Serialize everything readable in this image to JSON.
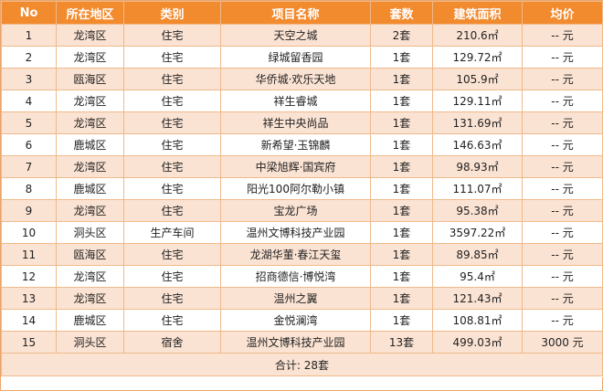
{
  "headers": [
    "No",
    "所在地区",
    "类别",
    "项目名称",
    "套数",
    "建筑面积",
    "均价"
  ],
  "rows": [
    {
      "no": "1",
      "district": "龙湾区",
      "type": "住宅",
      "name": "天空之城",
      "count": "2套",
      "area": "210.6㎡",
      "price": "-- 元"
    },
    {
      "no": "2",
      "district": "龙湾区",
      "type": "住宅",
      "name": "绿城留香园",
      "count": "1套",
      "area": "129.72㎡",
      "price": "-- 元"
    },
    {
      "no": "3",
      "district": "瓯海区",
      "type": "住宅",
      "name": "华侨城·欢乐天地",
      "count": "1套",
      "area": "105.9㎡",
      "price": "-- 元"
    },
    {
      "no": "4",
      "district": "龙湾区",
      "type": "住宅",
      "name": "祥生睿城",
      "count": "1套",
      "area": "129.11㎡",
      "price": "-- 元"
    },
    {
      "no": "5",
      "district": "龙湾区",
      "type": "住宅",
      "name": "祥生中央尚品",
      "count": "1套",
      "area": "131.69㎡",
      "price": "-- 元"
    },
    {
      "no": "6",
      "district": "鹿城区",
      "type": "住宅",
      "name": "新希望·玉锦麟",
      "count": "1套",
      "area": "146.63㎡",
      "price": "-- 元"
    },
    {
      "no": "7",
      "district": "龙湾区",
      "type": "住宅",
      "name": "中梁旭辉·国宾府",
      "count": "1套",
      "area": "98.93㎡",
      "price": "-- 元"
    },
    {
      "no": "8",
      "district": "鹿城区",
      "type": "住宅",
      "name": "阳光100阿尔勒小镇",
      "count": "1套",
      "area": "111.07㎡",
      "price": "-- 元"
    },
    {
      "no": "9",
      "district": "龙湾区",
      "type": "住宅",
      "name": "宝龙广场",
      "count": "1套",
      "area": "95.38㎡",
      "price": "-- 元"
    },
    {
      "no": "10",
      "district": "洞头区",
      "type": "生产车间",
      "name": "温州文博科技产业园",
      "count": "1套",
      "area": "3597.22㎡",
      "price": "-- 元"
    },
    {
      "no": "11",
      "district": "瓯海区",
      "type": "住宅",
      "name": "龙湖华董·春江天玺",
      "count": "1套",
      "area": "89.85㎡",
      "price": "-- 元"
    },
    {
      "no": "12",
      "district": "龙湾区",
      "type": "住宅",
      "name": "招商德信·博悦湾",
      "count": "1套",
      "area": "95.4㎡",
      "price": "-- 元"
    },
    {
      "no": "13",
      "district": "龙湾区",
      "type": "住宅",
      "name": "温州之翼",
      "count": "1套",
      "area": "121.43㎡",
      "price": "-- 元"
    },
    {
      "no": "14",
      "district": "鹿城区",
      "type": "住宅",
      "name": "金悦澜湾",
      "count": "1套",
      "area": "108.81㎡",
      "price": "-- 元"
    },
    {
      "no": "15",
      "district": "洞头区",
      "type": "宿舍",
      "name": "温州文博科技产业园",
      "count": "13套",
      "area": "499.03㎡",
      "price": "3000 元"
    }
  ],
  "total": "合计: 28套",
  "colors": {
    "header_bg": "#f28a2e",
    "stripe": "#fbe3d3",
    "border": "#efb98a"
  }
}
